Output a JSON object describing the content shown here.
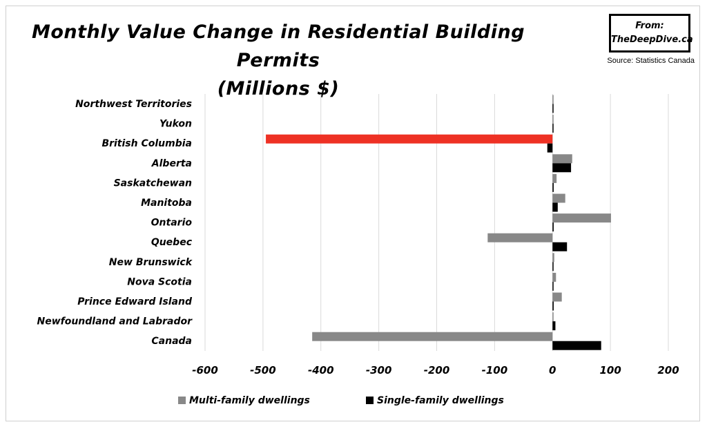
{
  "title_line1": "Monthly Value Change in Residential Building Permits",
  "title_line2": "(Millions $)",
  "badge_line1": "From:",
  "badge_line2": "TheDeepDive.ca",
  "source": "Source: Statistics Canada",
  "colors": {
    "multi": "#888888",
    "single": "#000000",
    "highlight": "#ee3124",
    "grid": "#d9d9d9"
  },
  "chart_data": {
    "type": "bar",
    "orientation": "horizontal",
    "categories": [
      "Northwest Territories",
      "Yukon",
      "British Columbia",
      "Alberta",
      "Saskatchewan",
      "Manitoba",
      "Ontario",
      "Quebec",
      "New Brunswick",
      "Nova Scotia",
      "Prince Edward Island",
      "Newfoundland and Labrador",
      "Canada"
    ],
    "series": [
      {
        "name": "Multi-family dwellings",
        "values": [
          0,
          0,
          -495,
          34,
          7,
          22,
          101,
          -112,
          3,
          6,
          16,
          1,
          -415
        ]
      },
      {
        "name": "Single-family dwellings",
        "values": [
          0,
          1,
          -9,
          32,
          2,
          9,
          2,
          25,
          1,
          1,
          2,
          5,
          84
        ]
      }
    ],
    "highlight": {
      "category": "British Columbia",
      "series": "Multi-family dwellings"
    },
    "xlim": [
      -600,
      200
    ],
    "xticks": [
      -600,
      -500,
      -400,
      -300,
      -200,
      -100,
      0,
      100,
      200
    ],
    "grid": "vertical",
    "legend_position": "bottom"
  }
}
